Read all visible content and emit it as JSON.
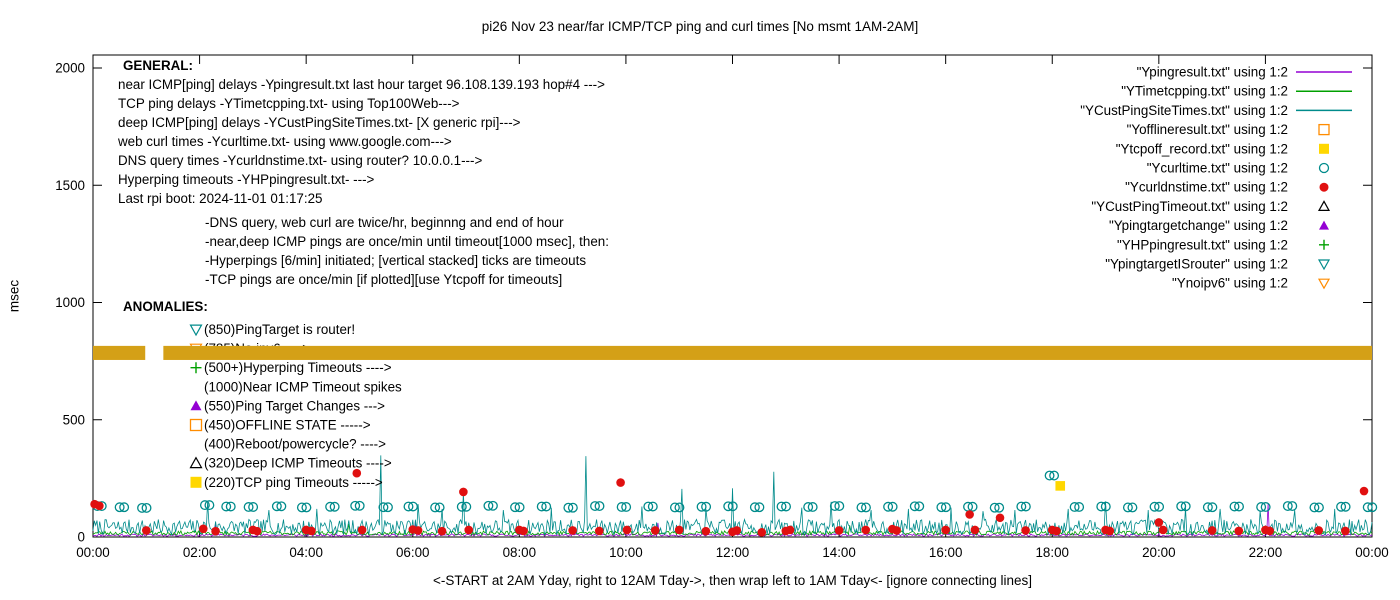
{
  "title": "pi26 Nov 23  near/far ICMP/TCP ping and curl times [No msmt 1AM-2AM]",
  "axes": {
    "ylabel": "msec",
    "xlabel": "<-START at 2AM Yday, right to 12AM Tday->, then wrap left to 1AM Tday<- [ignore connecting lines]",
    "ylim": [
      0,
      2055
    ],
    "yticks": [
      0,
      500,
      1000,
      1500,
      2000
    ],
    "xticks": [
      "00:00",
      "02:00",
      "04:00",
      "06:00",
      "08:00",
      "10:00",
      "12:00",
      "14:00",
      "16:00",
      "18:00",
      "20:00",
      "22:00",
      "00:00"
    ],
    "x_hours": [
      0,
      24
    ],
    "grid": false
  },
  "general": {
    "heading": "GENERAL:",
    "lines": [
      "near ICMP[ping] delays -Ypingresult.txt last hour target 96.108.139.193 hop#4 --->",
      "TCP ping delays -YTimetcpping.txt- using Top100Web--->",
      "deep ICMP[ping] delays -YCustPingSiteTimes.txt- [X generic rpi]--->",
      "web curl times -Ycurltime.txt- using www.google.com--->",
      "DNS query times -Ycurldnstime.txt- using router? 10.0.0.1--->",
      "Hyperping timeouts -YHPpingresult.txt- --->",
      "Last rpi boot: 2024-11-01 01:17:25"
    ],
    "notes": [
      "-DNS query, web curl are twice/hr, beginnng and end of hour",
      "-near,deep ICMP pings are once/min until timeout[1000 msec], then:",
      " -Hyperpings [6/min] initiated; [vertical stacked] ticks are timeouts",
      "-TCP pings are once/min [if plotted][use Ytcpoff for timeouts]"
    ]
  },
  "anomalies": {
    "heading": "ANOMALIES:",
    "items": [
      {
        "marker": "triangle-down-open",
        "color": "#008b8b",
        "text": "(850)PingTarget is router!",
        "behind_band": false
      },
      {
        "marker": "triangle-down-open",
        "color": "#ff8c00",
        "text": "(785)No ipv6 ---->",
        "behind_band": true
      },
      {
        "marker": "plus",
        "color": "#00a000",
        "text": "(500+)Hyperping Timeouts ---->",
        "behind_band": false
      },
      {
        "marker": null,
        "color": null,
        "text": "(1000)Near ICMP Timeout spikes",
        "behind_band": false
      },
      {
        "marker": "triangle-filled",
        "color": "#9400d3",
        "text": "(550)Ping Target Changes --->",
        "behind_band": false
      },
      {
        "marker": "square-open",
        "color": "#ff8c00",
        "text": "(450)OFFLINE STATE ----->",
        "behind_band": false
      },
      {
        "marker": null,
        "color": null,
        "text": "(400)Reboot/powercycle? ---->",
        "behind_band": false
      },
      {
        "marker": "triangle-open",
        "color": "#000000",
        "text": "(320)Deep ICMP Timeouts ---->",
        "behind_band": false
      },
      {
        "marker": "square-filled",
        "color": "#ffd700",
        "text": "(220)TCP ping Timeouts ----->",
        "behind_band": false
      }
    ]
  },
  "legend": [
    {
      "label": "\"Ypingresult.txt\" using 1:2",
      "sample": "line",
      "color": "#9400d3"
    },
    {
      "label": "\"YTimetcpping.txt\" using 1:2",
      "sample": "line",
      "color": "#00a000"
    },
    {
      "label": "\"YCustPingSiteTimes.txt\" using 1:2",
      "sample": "line",
      "color": "#008b8b"
    },
    {
      "label": "\"Yofflineresult.txt\" using 1:2",
      "sample": "square-open",
      "color": "#ff8c00"
    },
    {
      "label": "\"Ytcpoff_record.txt\" using 1:2",
      "sample": "square-filled",
      "color": "#ffd700"
    },
    {
      "label": "\"Ycurltime.txt\" using 1:2",
      "sample": "circle-open",
      "color": "#008b8b"
    },
    {
      "label": "\"Ycurldnstime.txt\" using 1:2",
      "sample": "circle-filled",
      "color": "#e01010"
    },
    {
      "label": "\"YCustPingTimeout.txt\" using 1:2",
      "sample": "triangle-open",
      "color": "#000000"
    },
    {
      "label": "\"Ypingtargetchange\" using 1:2",
      "sample": "triangle-filled",
      "color": "#9400d3"
    },
    {
      "label": "\"YHPpingresult.txt\" using 1:2",
      "sample": "plus",
      "color": "#00a000"
    },
    {
      "label": "\"YpingtargetISrouter\" using 1:2",
      "sample": "triangle-down-open",
      "color": "#008b8b"
    },
    {
      "label": "\"Ynoipv6\" using 1:2",
      "sample": "triangle-down-open",
      "color": "#ff8c00"
    }
  ],
  "chart_data": {
    "type": "line",
    "title": "pi26 Nov 23  near/far ICMP/TCP ping and curl times [No msmt 1AM-2AM]",
    "xlabel": "<-START at 2AM Yday, right to 12AM Tday->, then wrap left to 1AM Tday<- [ignore connecting lines]",
    "ylabel": "msec",
    "ylim": [
      0,
      2055
    ],
    "x_unit": "hour_of_day",
    "no_measurement_gap_hours": [
      1.0,
      1.32
    ],
    "series": [
      {
        "id": "Ypingresult",
        "render": "line",
        "color": "#9400d3",
        "baseline": {
          "min": 3,
          "max": 13,
          "seed": 11
        },
        "spikes": [
          [
            2.3,
            52
          ],
          [
            6.05,
            68
          ],
          [
            10.6,
            60
          ],
          [
            22.05,
            142
          ]
        ]
      },
      {
        "id": "YTimetcpping",
        "render": "line",
        "color": "#00a000",
        "baseline": {
          "min": 8,
          "max": 26,
          "seed": 23
        },
        "spikes": [
          [
            4.8,
            55
          ],
          [
            14.2,
            50
          ]
        ]
      },
      {
        "id": "YCustPingSiteTimes",
        "render": "line",
        "color": "#008b8b",
        "baseline": {
          "min": 10,
          "max": 75,
          "seed": 7
        },
        "spikes": [
          [
            2.15,
            150
          ],
          [
            3.3,
            115
          ],
          [
            4.2,
            120
          ],
          [
            5.4,
            348
          ],
          [
            6.1,
            140
          ],
          [
            6.55,
            120
          ],
          [
            6.95,
            188
          ],
          [
            7.7,
            115
          ],
          [
            8.6,
            125
          ],
          [
            9.25,
            345
          ],
          [
            10.3,
            130
          ],
          [
            11.05,
            205
          ],
          [
            11.5,
            120
          ],
          [
            12.0,
            208
          ],
          [
            12.78,
            278
          ],
          [
            13.3,
            125
          ],
          [
            13.85,
            150
          ],
          [
            14.6,
            115
          ],
          [
            15.3,
            120
          ],
          [
            16.1,
            125
          ],
          [
            16.7,
            110
          ],
          [
            17.3,
            115
          ],
          [
            18.3,
            120
          ],
          [
            19.0,
            152
          ],
          [
            19.8,
            115
          ],
          [
            20.5,
            125
          ],
          [
            21.15,
            120
          ],
          [
            21.9,
            110
          ],
          [
            22.55,
            115
          ],
          [
            23.3,
            120
          ]
        ]
      },
      {
        "id": "Yofflineresult",
        "render": "scatter",
        "marker": "square-open",
        "color": "#ff8c00",
        "points": []
      },
      {
        "id": "Ytcpoff_record",
        "render": "scatter",
        "marker": "square-filled",
        "color": "#ffd700",
        "points": [
          [
            18.15,
            218
          ]
        ]
      },
      {
        "id": "Ycurltime",
        "render": "scatter",
        "marker": "circle-open",
        "color": "#008b8b",
        "pair": true,
        "points": [
          [
            0.08,
            132
          ],
          [
            0.5,
            127
          ],
          [
            0.92,
            124
          ],
          [
            2.1,
            136
          ],
          [
            2.5,
            130
          ],
          [
            2.92,
            128
          ],
          [
            3.45,
            131
          ],
          [
            3.92,
            126
          ],
          [
            4.45,
            129
          ],
          [
            4.92,
            133
          ],
          [
            5.45,
            127
          ],
          [
            5.92,
            130
          ],
          [
            6.42,
            126
          ],
          [
            6.92,
            129
          ],
          [
            7.42,
            133
          ],
          [
            7.92,
            127
          ],
          [
            8.42,
            130
          ],
          [
            8.92,
            125
          ],
          [
            9.42,
            132
          ],
          [
            9.92,
            128
          ],
          [
            10.42,
            130
          ],
          [
            10.92,
            126
          ],
          [
            11.42,
            129
          ],
          [
            11.92,
            131
          ],
          [
            12.42,
            127
          ],
          [
            12.92,
            130
          ],
          [
            13.42,
            128
          ],
          [
            13.92,
            132
          ],
          [
            14.42,
            126
          ],
          [
            14.92,
            129
          ],
          [
            15.42,
            131
          ],
          [
            15.92,
            127
          ],
          [
            16.42,
            129
          ],
          [
            16.92,
            125
          ],
          [
            17.42,
            130
          ],
          [
            17.95,
            262
          ],
          [
            18.42,
            128
          ],
          [
            18.92,
            130
          ],
          [
            19.42,
            126
          ],
          [
            19.92,
            129
          ],
          [
            20.42,
            131
          ],
          [
            20.92,
            127
          ],
          [
            21.42,
            130
          ],
          [
            21.92,
            128
          ],
          [
            22.42,
            132
          ],
          [
            22.92,
            126
          ],
          [
            23.42,
            129
          ],
          [
            23.92,
            127
          ]
        ]
      },
      {
        "id": "Ycurldnstime",
        "render": "scatter",
        "marker": "circle-filled",
        "color": "#e01010",
        "points": [
          [
            0.03,
            140
          ],
          [
            0.12,
            133
          ],
          [
            1.0,
            28
          ],
          [
            2.07,
            35
          ],
          [
            2.3,
            25
          ],
          [
            3.0,
            30
          ],
          [
            3.08,
            25
          ],
          [
            4.0,
            30
          ],
          [
            4.1,
            26
          ],
          [
            4.95,
            272
          ],
          [
            5.05,
            30
          ],
          [
            6.0,
            32
          ],
          [
            6.1,
            28
          ],
          [
            6.55,
            25
          ],
          [
            6.95,
            192
          ],
          [
            7.05,
            30
          ],
          [
            8.0,
            30
          ],
          [
            8.08,
            26
          ],
          [
            9.0,
            28
          ],
          [
            9.5,
            26
          ],
          [
            9.9,
            232
          ],
          [
            10.02,
            30
          ],
          [
            10.55,
            28
          ],
          [
            11.0,
            30
          ],
          [
            11.5,
            25
          ],
          [
            12.0,
            22
          ],
          [
            12.08,
            28
          ],
          [
            12.55,
            20
          ],
          [
            13.0,
            26
          ],
          [
            13.08,
            30
          ],
          [
            14.0,
            28
          ],
          [
            14.5,
            30
          ],
          [
            15.0,
            34
          ],
          [
            15.08,
            28
          ],
          [
            16.0,
            30
          ],
          [
            16.45,
            96
          ],
          [
            16.55,
            30
          ],
          [
            17.02,
            82
          ],
          [
            17.5,
            28
          ],
          [
            18.0,
            30
          ],
          [
            18.08,
            26
          ],
          [
            19.0,
            30
          ],
          [
            19.08,
            26
          ],
          [
            20.0,
            62
          ],
          [
            20.08,
            30
          ],
          [
            21.0,
            28
          ],
          [
            21.5,
            26
          ],
          [
            22.0,
            30
          ],
          [
            22.08,
            26
          ],
          [
            23.0,
            28
          ],
          [
            23.5,
            26
          ],
          [
            23.85,
            196
          ]
        ]
      },
      {
        "id": "YCustPingTimeout",
        "render": "scatter",
        "marker": "triangle-open",
        "color": "#000000",
        "points": []
      },
      {
        "id": "Ypingtargetchange",
        "render": "scatter",
        "marker": "triangle-filled",
        "color": "#9400d3",
        "points": []
      },
      {
        "id": "YHPpingresult",
        "render": "scatter",
        "marker": "plus",
        "color": "#00a000",
        "points": []
      },
      {
        "id": "YpingtargetISrouter",
        "render": "scatter",
        "marker": "triangle-down-open",
        "color": "#008b8b",
        "points": []
      },
      {
        "id": "Ynoipv6",
        "render": "band",
        "color": "#d4a017",
        "y": 785,
        "half_height": 30,
        "segments": [
          [
            0,
            0.98
          ],
          [
            1.32,
            24
          ]
        ]
      }
    ]
  }
}
